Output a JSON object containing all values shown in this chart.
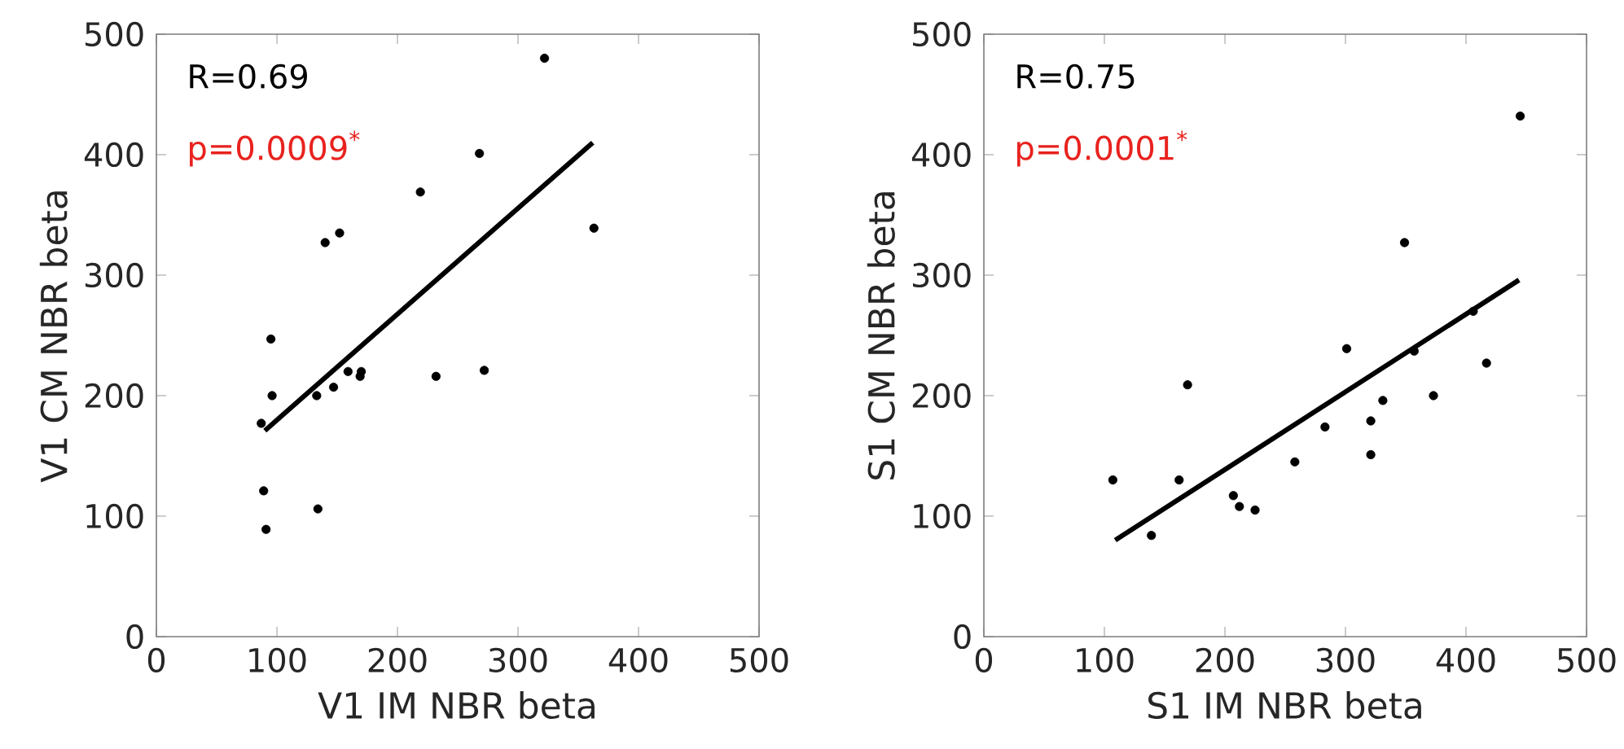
{
  "chart_data": [
    {
      "type": "scatter",
      "xlabel": "V1 IM NBR beta",
      "ylabel": "V1 CM NBR beta",
      "annotations": [
        "R=0.69",
        "p=0.0009$^{*}$"
      ],
      "xlim": [
        0,
        500
      ],
      "ylim": [
        0,
        500
      ],
      "xticks": [
        0,
        100,
        200,
        300,
        400,
        500
      ],
      "yticks": [
        0,
        100,
        200,
        300,
        400,
        500
      ],
      "grid": false,
      "series": [
        {
          "marker": "circle",
          "color": "#000000",
          "x": [
            322,
            268,
            219,
            152,
            140,
            363,
            95,
            159,
            170,
            169,
            272,
            232,
            147,
            133,
            96,
            87,
            89,
            134,
            91
          ],
          "values": [
            480,
            401,
            369,
            335,
            327,
            339,
            247,
            220,
            220,
            216,
            221,
            216,
            207,
            200,
            200,
            177,
            121,
            106,
            89
          ]
        },
        {
          "type": "line",
          "marker": "none",
          "color": "#000000",
          "x": [
            90,
            362
          ],
          "values": [
            171,
            410
          ]
        }
      ]
    },
    {
      "type": "scatter",
      "xlabel": "S1 IM NBR beta",
      "ylabel": "S1 CM NBR beta",
      "annotations": [
        "R=0.75",
        "p=0.0001$^{*}$"
      ],
      "xlim": [
        0,
        500
      ],
      "ylim": [
        0,
        500
      ],
      "xticks": [
        0,
        100,
        200,
        300,
        400,
        500
      ],
      "yticks": [
        0,
        100,
        200,
        300,
        400,
        500
      ],
      "grid": false,
      "series": [
        {
          "marker": "circle",
          "color": "#000000",
          "x": [
            445,
            349,
            301,
            169,
            406,
            357,
            417,
            373,
            331,
            321,
            283,
            321,
            258,
            107,
            162,
            207,
            212,
            225,
            139
          ],
          "values": [
            432,
            327,
            239,
            209,
            270,
            237,
            227,
            200,
            196,
            179,
            174,
            151,
            145,
            130,
            130,
            117,
            108,
            105,
            84
          ]
        },
        {
          "type": "line",
          "marker": "none",
          "color": "#000000",
          "x": [
            109,
            444
          ],
          "values": [
            80,
            296
          ]
        }
      ]
    }
  ]
}
